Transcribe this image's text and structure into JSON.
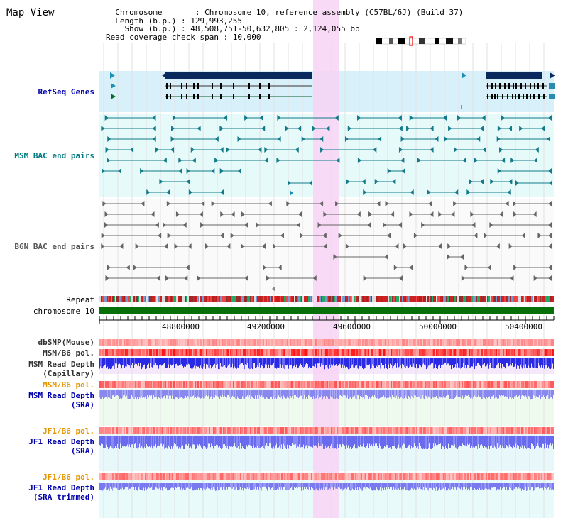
{
  "header": {
    "title": "Map View",
    "info_lines": [
      "  Chromosome       : Chromosome 10, reference assembly (C57BL/6J) (Build 37)",
      "  Length (b.p.) : 129,993,255",
      "    Show (b.p.) : 48,508,751-50,632,805 : 2,124,055 bp",
      "Read coverage check span : 10,000"
    ]
  },
  "colors": {
    "refseq_bg": "#d8f0fa",
    "msm_bac_bg": "#e6fafa",
    "sra_bg": "#effaef",
    "highlight": "#f8d4f4",
    "refseq_gene": "#0a2a5e",
    "msm_bac": "#127a8a",
    "b6n_bac": "#666666",
    "chrom_bar": "#087008",
    "depth_blue": "#2222ee",
    "label_blue": "#0000aa",
    "label_teal": "#007a80",
    "label_orange": "#e69600"
  },
  "tracks": {
    "refseq": {
      "label": "RefSeq Genes",
      "color": "#0000aa"
    },
    "msm_bac": {
      "label": "MSM BAC end pairs",
      "color": "#007a80"
    },
    "b6n_bac": {
      "label": "B6N BAC end pairs",
      "color": "#555555"
    },
    "repeat": {
      "label": "Repeat",
      "color": "#000000"
    },
    "chrom": {
      "label": "chromosome 10",
      "color": "#000000"
    },
    "dbsnp": {
      "label": "dbSNP(Mouse)",
      "color": "#333333"
    },
    "msm_b6_pol": {
      "label": "MSM/B6 pol.",
      "color": "#333333"
    },
    "msm_depth_cap": {
      "label": "MSM Read Depth\n(Capillary)",
      "color": "#333333"
    },
    "msm_b6_pol2": {
      "label": "MSM/B6 pol.",
      "color": "#e69600"
    },
    "msm_depth_sra": {
      "label": "MSM Read Depth\n(SRA)",
      "color": "#0000aa"
    },
    "jf1_b6_pol": {
      "label": "JF1/B6 pol.",
      "color": "#e69600"
    },
    "jf1_depth_sra": {
      "label": "JF1 Read Depth\n(SRA)",
      "color": "#0000aa"
    },
    "jf1_b6_pol2": {
      "label": "JF1/B6 pol.",
      "color": "#e69600"
    },
    "jf1_depth_trim": {
      "label": "JF1 Read Depth\n(SRA trimmed)",
      "color": "#0000aa"
    }
  },
  "ruler": {
    "ticks": [
      "48800000",
      "49200000",
      "49600000",
      "50000000",
      "50400000"
    ]
  }
}
